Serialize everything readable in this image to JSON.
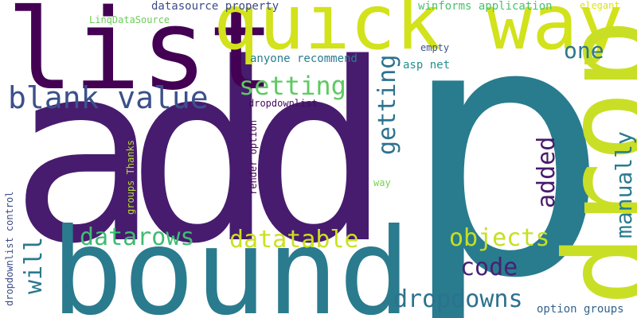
{
  "wordcloud": {
    "words": [
      {
        "id": "add",
        "text": "add",
        "color": "#471c6e"
      },
      {
        "id": "p",
        "text": "p",
        "color": "#287c8e"
      },
      {
        "id": "list",
        "text": "list",
        "color": "#440154"
      },
      {
        "id": "quick_way",
        "text": "quick way",
        "color": "#d2e21b"
      },
      {
        "id": "bound",
        "text": "bound",
        "color": "#2a7b8e"
      },
      {
        "id": "drop",
        "text": "drop",
        "color": "#c9df26"
      },
      {
        "id": "blank_value",
        "text": "blank value",
        "color": "#3b518b"
      },
      {
        "id": "setting",
        "text": "setting",
        "color": "#5ec962"
      },
      {
        "id": "getting",
        "text": "getting",
        "color": "#2c728e"
      },
      {
        "id": "one",
        "text": "one",
        "color": "#2a788e"
      },
      {
        "id": "added",
        "text": "added",
        "color": "#481a6c"
      },
      {
        "id": "manually",
        "text": "manually",
        "color": "#2a7b8e"
      },
      {
        "id": "datarows",
        "text": "datarows",
        "color": "#3fbc73"
      },
      {
        "id": "datatable",
        "text": "datatable",
        "color": "#cbe11e"
      },
      {
        "id": "objects",
        "text": "objects",
        "color": "#c5e021"
      },
      {
        "id": "code",
        "text": "code",
        "color": "#482173"
      },
      {
        "id": "dropdowns",
        "text": "dropdowns",
        "color": "#2c728e"
      },
      {
        "id": "will",
        "text": "will",
        "color": "#2a788e"
      },
      {
        "id": "datasource_property",
        "text": "datasource property",
        "color": "#3e4a89"
      },
      {
        "id": "winforms_application",
        "text": "winforms application",
        "color": "#4ac16d"
      },
      {
        "id": "elegant",
        "text": "elegant",
        "color": "#dde318"
      },
      {
        "id": "linqdatasource",
        "text": "LinqDataSource",
        "color": "#6ccd5a"
      },
      {
        "id": "anyone_recommend",
        "text": "anyone recommend",
        "color": "#287d8e"
      },
      {
        "id": "asp_net",
        "text": "asp net",
        "color": "#21918c"
      },
      {
        "id": "empty",
        "text": "empty",
        "color": "#3b528b"
      },
      {
        "id": "dropdownlist",
        "text": "dropdownlist",
        "color": "#46085c"
      },
      {
        "id": "render_option",
        "text": "render option",
        "color": "#440154"
      },
      {
        "id": "groups_thanks",
        "text": "groups Thanks",
        "color": "#b5de2b"
      },
      {
        "id": "dropdownlist_control",
        "text": "dropdownlist control",
        "color": "#3e4c8a"
      },
      {
        "id": "way",
        "text": "way",
        "color": "#7ad151"
      },
      {
        "id": "option_groups",
        "text": "option groups",
        "color": "#33638d"
      }
    ]
  }
}
